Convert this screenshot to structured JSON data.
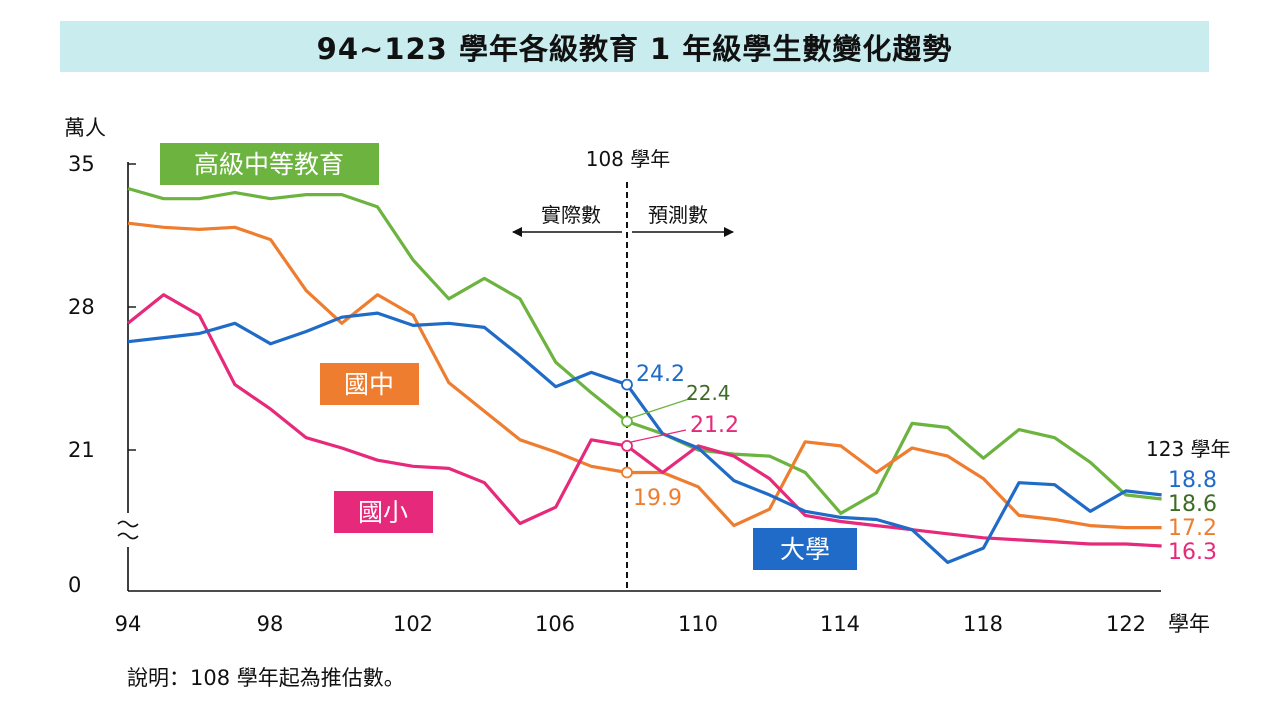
{
  "title": "94~123 學年各級教育 1 年級學生數變化趨勢",
  "note": "說明：108 學年起為推估數。",
  "colors": {
    "title_background": "#c9ecef",
    "high_school": "#6cb33f",
    "junior_high": "#ee7d2f",
    "elementary": "#e6297a",
    "university": "#1f6bc7",
    "high_school_end_label": "#3e6b26"
  },
  "chart_data": {
    "type": "line",
    "title": "94~123 學年各級教育 1 年級學生數變化趨勢",
    "ylabel": "萬人",
    "xlabel": "學年",
    "y_ticks": [
      "35",
      "28",
      "21",
      "0"
    ],
    "y_axis_break": true,
    "x_ticks": [
      "94",
      "98",
      "102",
      "106",
      "110",
      "114",
      "118",
      "122"
    ],
    "x": [
      94,
      95,
      96,
      97,
      98,
      99,
      100,
      101,
      102,
      103,
      104,
      105,
      106,
      107,
      108,
      109,
      110,
      111,
      112,
      113,
      114,
      115,
      116,
      117,
      118,
      119,
      120,
      121,
      122,
      123
    ],
    "divider": {
      "year": 108,
      "label": "108 學年",
      "left_label": "實際數",
      "right_label": "預測數"
    },
    "end_label_header": "123 學年",
    "series": [
      {
        "key": "high",
        "name": "高級中等教育",
        "color": "#6cb33f",
        "values": [
          33.8,
          33.3,
          33.3,
          33.6,
          33.3,
          33.5,
          33.5,
          32.9,
          30.3,
          28.4,
          29.4,
          28.4,
          25.3,
          23.8,
          22.4,
          21.8,
          21.0,
          20.8,
          20.7,
          19.9,
          17.9,
          18.9,
          22.3,
          22.1,
          20.6,
          22.0,
          21.6,
          20.4,
          18.8,
          18.6
        ],
        "labels": [
          {
            "year": 108,
            "text": "22.4"
          },
          {
            "year": 123,
            "text": "18.6"
          }
        ]
      },
      {
        "key": "junior",
        "name": "國中",
        "color": "#ee7d2f",
        "values": [
          32.1,
          31.9,
          31.8,
          31.9,
          31.3,
          28.8,
          27.2,
          28.6,
          27.6,
          24.3,
          22.9,
          21.5,
          20.9,
          20.2,
          19.9,
          19.9,
          19.2,
          17.3,
          18.1,
          21.4,
          21.2,
          19.9,
          21.1,
          20.7,
          19.6,
          17.8,
          17.6,
          17.3,
          17.2,
          17.2
        ],
        "labels": [
          {
            "year": 108,
            "text": "19.9"
          },
          {
            "year": 123,
            "text": "17.2"
          }
        ]
      },
      {
        "key": "elem",
        "name": "國小",
        "color": "#e6297a",
        "values": [
          27.2,
          28.6,
          27.6,
          24.2,
          23.0,
          21.6,
          21.1,
          20.5,
          20.2,
          20.1,
          19.4,
          17.4,
          18.2,
          21.5,
          21.2,
          19.9,
          21.2,
          20.7,
          19.6,
          17.8,
          17.5,
          17.3,
          17.1,
          16.9,
          16.7,
          16.6,
          16.5,
          16.4,
          16.4,
          16.3
        ],
        "labels": [
          {
            "year": 108,
            "text": "21.2"
          },
          {
            "year": 123,
            "text": "16.3"
          }
        ]
      },
      {
        "key": "univ",
        "name": "大學",
        "color": "#1f6bc7",
        "values": [
          26.3,
          26.5,
          26.7,
          27.2,
          26.2,
          26.8,
          27.5,
          27.7,
          27.1,
          27.2,
          27.0,
          25.6,
          24.1,
          24.8,
          24.2,
          21.8,
          21.1,
          19.5,
          18.8,
          18.0,
          17.7,
          17.6,
          17.1,
          15.5,
          16.2,
          19.4,
          19.3,
          18.0,
          19.0,
          18.8
        ],
        "labels": [
          {
            "year": 108,
            "text": "24.2"
          },
          {
            "year": 123,
            "text": "18.8"
          }
        ]
      }
    ]
  }
}
